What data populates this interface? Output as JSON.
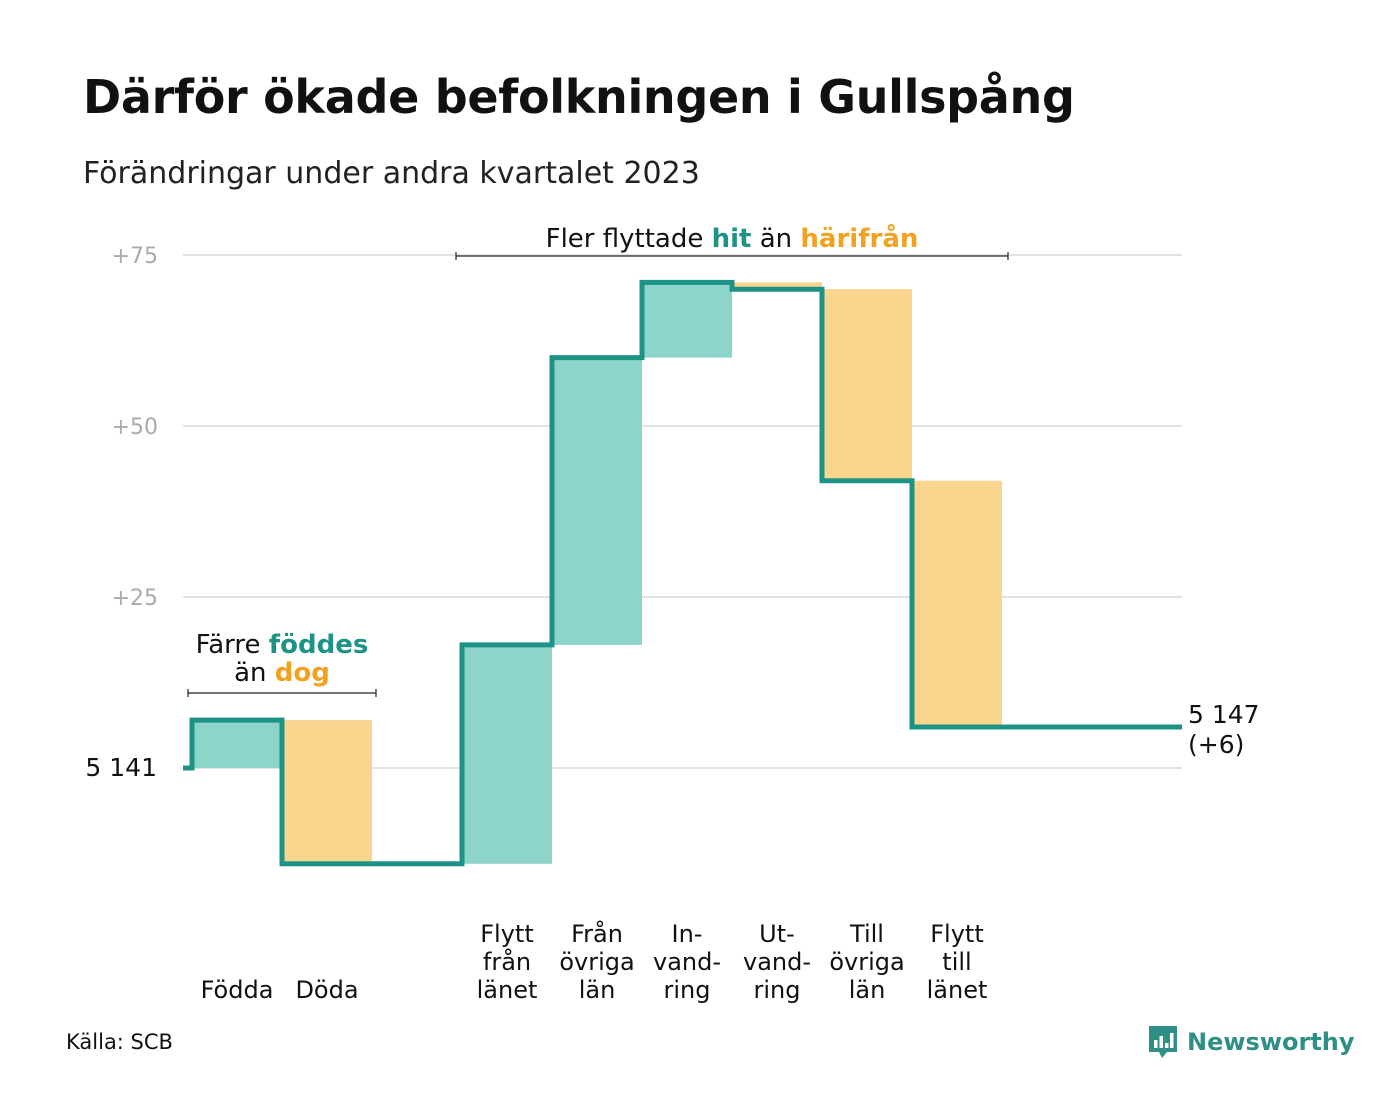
{
  "title": "Därför ökade befolkningen i Gullspång",
  "subtitle": "Förändringar under andra kvartalet 2023",
  "source": "Källa: SCB",
  "brand": {
    "name": "Newsworthy",
    "icon": "newsworthy-logo-icon"
  },
  "colors": {
    "increase_fill": "#8dd4cb",
    "decrease_fill": "#fad58e",
    "line": "#1d9386",
    "accent_teal": "#1d9386",
    "accent_orange": "#f3a21f",
    "grid": "#e2e2e2",
    "tick_text": "#aaaaaa"
  },
  "chart_data": {
    "type": "waterfall",
    "start_value": 5141,
    "start_label": "5  141",
    "end_value": 5147,
    "end_label": [
      "5 147",
      "(+6)"
    ],
    "y_ticks": [
      {
        "value": 25,
        "label": "+25"
      },
      {
        "value": 50,
        "label": "+50"
      },
      {
        "value": 75,
        "label": "+75"
      }
    ],
    "ylim": [
      -14,
      76
    ],
    "grid": true,
    "steps": [
      {
        "label": [
          "Födda"
        ],
        "change": 7
      },
      {
        "label": [
          "Döda"
        ],
        "change": -21
      },
      {
        "label": [],
        "change": 0
      },
      {
        "label": [
          "Flytt",
          "från",
          "länet"
        ],
        "change": 32
      },
      {
        "label": [
          "Från",
          "övriga",
          "län"
        ],
        "change": 42
      },
      {
        "label": [
          "In-",
          "vand-",
          "ring"
        ],
        "change": 11
      },
      {
        "label": [
          "Ut-",
          "vand-",
          "ring"
        ],
        "change": -1
      },
      {
        "label": [
          "Till",
          "övriga",
          "län"
        ],
        "change": -28
      },
      {
        "label": [
          "Flytt",
          "till",
          "länet"
        ],
        "change": -36
      }
    ],
    "annotations": [
      {
        "id": "births",
        "line1": [
          {
            "text": "Färre ",
            "style": "plain"
          },
          {
            "text": "föddes",
            "style": "teal"
          }
        ],
        "line2": [
          {
            "text": "än ",
            "style": "plain"
          },
          {
            "text": "dog",
            "style": "orange"
          }
        ],
        "span_steps": [
          0,
          1
        ]
      },
      {
        "id": "moves",
        "line1": [
          {
            "text": "Fler flyttade ",
            "style": "plain"
          },
          {
            "text": "hit",
            "style": "teal"
          },
          {
            "text": "  än ",
            "style": "plain"
          },
          {
            "text": "härifrån",
            "style": "orange"
          }
        ],
        "span_steps": [
          3,
          8
        ]
      }
    ]
  }
}
